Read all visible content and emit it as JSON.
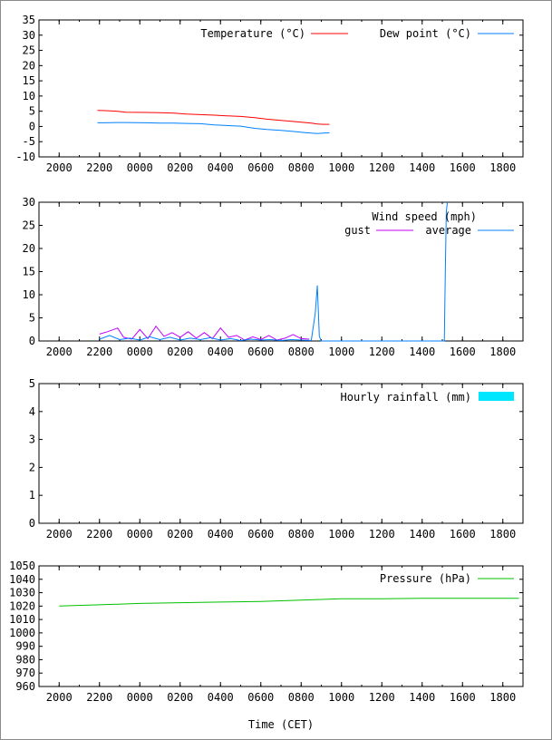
{
  "x_ticks": [
    "2000",
    "2200",
    "0000",
    "0200",
    "0400",
    "0600",
    "0800",
    "1000",
    "1200",
    "1400",
    "1600",
    "1800"
  ],
  "xlabel": "Time (CET)",
  "colors": {
    "temperature": "#ff0000",
    "dew_point": "#0080ff",
    "gust": "#c000ff",
    "average": "#0080ff",
    "rainfall": "#00e6ff",
    "pressure": "#00c000"
  },
  "chart_data": [
    {
      "type": "line",
      "id": "temperature",
      "ylim": [
        -10,
        35
      ],
      "yticks": [
        "35",
        "30",
        "25",
        "20",
        "15",
        "10",
        "5",
        "0",
        "-5",
        "-10"
      ],
      "series": [
        {
          "name": "Temperature (°C)",
          "color_key": "temperature",
          "x": [
            21.9,
            22.3,
            22.9,
            23.3,
            0.3,
            1.0,
            1.7,
            2.3,
            3.0,
            3.7,
            4.3,
            5.0,
            5.7,
            6.3,
            7.0,
            7.7,
            8.2,
            8.5,
            8.8,
            9.1,
            9.4
          ],
          "y": [
            5.3,
            5.2,
            5,
            4.7,
            4.6,
            4.5,
            4.4,
            4.1,
            3.9,
            3.7,
            3.5,
            3.3,
            2.9,
            2.4,
            2,
            1.6,
            1.3,
            1.1,
            0.8,
            0.7,
            0.7
          ]
        },
        {
          "name": "Dew point (°C)",
          "color_key": "dew_point",
          "x": [
            21.9,
            22.3,
            22.9,
            23.3,
            0.3,
            1.0,
            1.7,
            2.3,
            3.0,
            3.7,
            4.3,
            5.0,
            5.7,
            6.3,
            7.0,
            7.7,
            8.2,
            8.5,
            8.8,
            9.1,
            9.4
          ],
          "y": [
            1.2,
            1.2,
            1.3,
            1.3,
            1.2,
            1.1,
            1.1,
            1,
            0.9,
            0.5,
            0.3,
            0.1,
            -0.6,
            -1,
            -1.3,
            -1.7,
            -2,
            -2.2,
            -2.3,
            -2.2,
            -2.1
          ]
        }
      ]
    },
    {
      "type": "line",
      "id": "wind",
      "ylim": [
        0,
        30
      ],
      "yticks": [
        "30",
        "25",
        "20",
        "15",
        "10",
        "5",
        "0"
      ],
      "title": "Wind speed (mph)",
      "series": [
        {
          "name": "gust",
          "color_key": "gust",
          "x": [
            22.0,
            22.4,
            22.9,
            23.2,
            23.6,
            0.0,
            0.4,
            0.8,
            1.2,
            1.6,
            2.0,
            2.4,
            2.8,
            3.2,
            3.6,
            4.0,
            4.4,
            4.8,
            5.2,
            5.6,
            6.0,
            6.4,
            6.8,
            7.2,
            7.6,
            8.0,
            8.4
          ],
          "y": [
            1.5,
            2,
            2.8,
            0.8,
            0.4,
            2.5,
            0.5,
            3.2,
            1,
            1.8,
            0.8,
            2,
            0.6,
            1.8,
            0.5,
            2.8,
            0.8,
            1.2,
            0.2,
            0.9,
            0.3,
            1.2,
            0.2,
            0.6,
            1.4,
            0.5,
            0.4
          ]
        },
        {
          "name": "average",
          "color_key": "average",
          "x": [
            22.0,
            22.5,
            23.0,
            23.5,
            0.0,
            0.5,
            1.0,
            1.5,
            2.0,
            2.5,
            3.0,
            3.5,
            4.0,
            4.5,
            5.0,
            5.5,
            6.0,
            6.5,
            7.0,
            7.5,
            8.0,
            8.5,
            8.7,
            8.8,
            8.9,
            9.0,
            15.1,
            15.15,
            15.2,
            15.25
          ],
          "y": [
            0.4,
            1.2,
            0.3,
            0.6,
            0.2,
            0.9,
            0.3,
            0.8,
            0.2,
            0.6,
            0.3,
            0.7,
            0.2,
            0.5,
            0.1,
            0.4,
            0.2,
            0.3,
            0.1,
            0.3,
            0.2,
            0.1,
            6,
            12,
            1,
            0,
            0,
            15,
            28,
            30
          ]
        }
      ]
    },
    {
      "type": "bar",
      "id": "rainfall",
      "ylim": [
        0,
        5
      ],
      "yticks": [
        "5",
        "4",
        "3",
        "2",
        "1",
        "0"
      ],
      "series": [
        {
          "name": "Hourly rainfall (mm)",
          "color_key": "rainfall",
          "x": [],
          "y": []
        }
      ]
    },
    {
      "type": "line",
      "id": "pressure",
      "ylim": [
        960,
        1050
      ],
      "yticks": [
        "1050",
        "1040",
        "1030",
        "1020",
        "1010",
        "1000",
        "990",
        "980",
        "970",
        "960"
      ],
      "series": [
        {
          "name": "Pressure (hPa)",
          "color_key": "pressure",
          "x": [
            20.0,
            22.0,
            0.0,
            2.0,
            4.0,
            6.0,
            8.0,
            10.0,
            12.0,
            14.0,
            16.0,
            18.0,
            18.8
          ],
          "y": [
            1020,
            1021,
            1022,
            1022.5,
            1023,
            1023.5,
            1024.5,
            1025.5,
            1025.5,
            1025.8,
            1025.8,
            1025.8,
            1025.8
          ]
        }
      ]
    }
  ]
}
